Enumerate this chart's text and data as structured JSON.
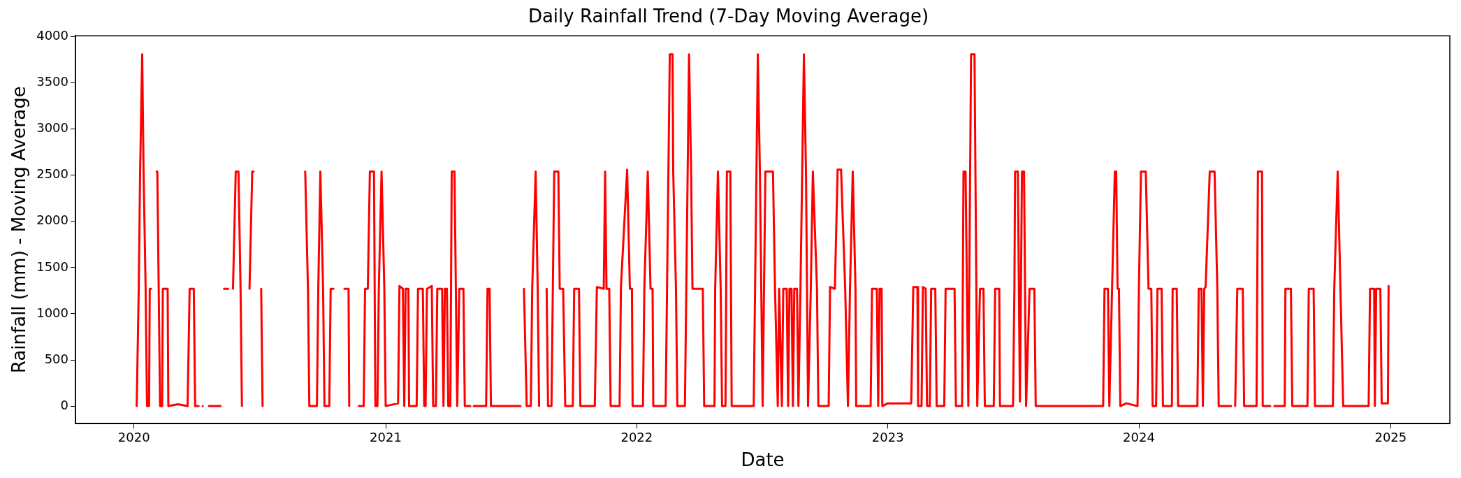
{
  "chart_data": {
    "type": "line",
    "title": "Daily Rainfall Trend (7-Day Moving Average)",
    "xlabel": "Date",
    "ylabel": "Rainfall (mm) - Moving Average",
    "x": [
      "2020-01-05",
      "2020-01-08",
      "2020-01-10",
      "2020-01-13",
      "2020-01-15",
      "2020-01-18",
      "2020-01-20",
      "2020-01-23",
      "2020-01-24",
      "2020-01-26",
      "2020-01-29",
      "2020-02-03",
      "2020-02-04",
      "2020-02-08",
      "2020-02-11",
      "2020-02-12",
      "2020-02-19",
      "2020-02-20",
      "2020-03-05",
      "2020-03-19",
      "2020-03-22",
      "2020-03-28",
      "2020-03-30",
      "2020-04-04",
      "2020-04-07",
      "2020-04-10",
      "2020-04-12",
      "2020-04-19",
      "2020-05-06",
      "2020-05-08",
      "2020-05-11",
      "2020-05-17",
      "2020-05-20",
      "2020-05-24",
      "2020-05-28",
      "2020-06-01",
      "2020-06-04",
      "2020-06-06",
      "2020-06-10",
      "2020-06-17",
      "2020-06-21",
      "2020-06-23",
      "2020-06-27",
      "2020-07-04",
      "2020-07-06",
      "2020-07-20",
      "2020-09-06",
      "2020-09-10",
      "2020-09-12",
      "2020-09-23",
      "2020-09-25",
      "2020-09-28",
      "2020-10-02",
      "2020-10-04",
      "2020-10-11",
      "2020-10-13",
      "2020-10-17",
      "2020-10-22",
      "2020-11-02",
      "2020-11-08",
      "2020-11-09",
      "2020-11-15",
      "2020-11-23",
      "2020-11-30",
      "2020-12-02",
      "2020-12-06",
      "2020-12-09",
      "2020-12-15",
      "2020-12-17",
      "2020-12-20",
      "2020-12-22",
      "2020-12-26",
      "2020-12-30",
      "2021-01-01",
      "2021-01-19",
      "2021-01-21",
      "2021-01-26",
      "2021-01-28",
      "2021-01-30",
      "2021-02-03",
      "2021-02-04",
      "2021-02-15",
      "2021-02-17",
      "2021-02-24",
      "2021-02-26",
      "2021-02-28",
      "2021-03-02",
      "2021-03-09",
      "2021-03-11",
      "2021-03-15",
      "2021-03-17",
      "2021-03-24",
      "2021-03-26",
      "2021-03-28",
      "2021-03-31",
      "2021-04-02",
      "2021-04-05",
      "2021-04-07",
      "2021-04-11",
      "2021-04-13",
      "2021-04-15",
      "2021-04-18",
      "2021-04-24",
      "2021-04-26",
      "2021-05-04",
      "2021-05-06",
      "2021-05-09",
      "2021-05-27",
      "2021-05-29",
      "2021-06-01",
      "2021-06-03",
      "2021-07-16",
      "2021-07-18",
      "2021-07-21",
      "2021-07-25",
      "2021-07-31",
      "2021-08-02",
      "2021-08-07",
      "2021-08-10",
      "2021-08-12",
      "2021-08-16",
      "2021-08-23",
      "2021-08-25",
      "2021-08-30",
      "2021-09-01",
      "2021-09-03",
      "2021-09-09",
      "2021-09-11",
      "2021-09-16",
      "2021-09-19",
      "2021-09-30",
      "2021-10-02",
      "2021-10-09",
      "2021-10-11",
      "2021-11-01",
      "2021-11-04",
      "2021-11-14",
      "2021-11-16",
      "2021-11-18",
      "2021-11-22",
      "2021-11-24",
      "2021-12-07",
      "2021-12-09",
      "2021-12-18",
      "2021-12-22",
      "2021-12-25",
      "2021-12-26",
      "2022-01-10",
      "2022-01-12",
      "2022-01-17",
      "2022-01-21",
      "2022-01-24",
      "2022-01-25",
      "2022-02-12",
      "2022-02-14",
      "2022-02-18",
      "2022-02-22",
      "2022-02-23",
      "2022-02-27",
      "2022-03-01",
      "2022-03-12",
      "2022-03-14",
      "2022-03-18",
      "2022-03-21",
      "2022-03-23",
      "2022-04-07",
      "2022-04-09",
      "2022-04-24",
      "2022-04-25",
      "2022-04-29",
      "2022-05-03",
      "2022-05-05",
      "2022-05-10",
      "2022-05-12",
      "2022-05-17",
      "2022-05-19",
      "2022-06-20",
      "2022-06-22",
      "2022-06-26",
      "2022-06-29",
      "2022-07-03",
      "2022-07-07",
      "2022-07-18",
      "2022-07-21",
      "2022-07-25",
      "2022-07-27",
      "2022-07-31",
      "2022-08-02",
      "2022-08-07",
      "2022-08-09",
      "2022-08-11",
      "2022-08-14",
      "2022-08-16",
      "2022-08-18",
      "2022-08-22",
      "2022-08-24",
      "2022-08-27",
      "2022-09-01",
      "2022-09-04",
      "2022-09-07",
      "2022-09-11",
      "2022-09-14",
      "2022-09-20",
      "2022-09-22",
      "2022-10-07",
      "2022-10-09",
      "2022-10-16",
      "2022-10-20",
      "2022-10-25",
      "2022-10-31",
      "2022-11-04",
      "2022-11-07",
      "2022-11-11",
      "2022-11-15",
      "2022-11-16",
      "2022-12-07",
      "2022-12-09",
      "2022-12-16",
      "2022-12-18",
      "2022-12-20",
      "2022-12-23",
      "2022-12-24",
      "2023-01-01",
      "2023-02-04",
      "2023-02-07",
      "2023-02-13",
      "2023-02-14",
      "2023-02-19",
      "2023-02-21",
      "2023-02-25",
      "2023-02-27",
      "2023-03-03",
      "2023-03-05",
      "2023-03-11",
      "2023-03-13",
      "2023-03-24",
      "2023-03-26",
      "2023-04-08",
      "2023-04-10",
      "2023-04-19",
      "2023-04-21",
      "2023-04-24",
      "2023-04-28",
      "2023-05-02",
      "2023-05-07",
      "2023-05-11",
      "2023-05-15",
      "2023-05-20",
      "2023-05-22",
      "2023-06-04",
      "2023-06-06",
      "2023-06-12",
      "2023-06-13",
      "2023-07-02",
      "2023-07-04",
      "2023-07-05",
      "2023-07-09",
      "2023-07-12",
      "2023-07-15",
      "2023-07-18",
      "2023-07-21",
      "2023-07-26",
      "2023-08-02",
      "2023-08-04",
      "2023-11-10",
      "2023-11-12",
      "2023-11-17",
      "2023-11-19",
      "2023-11-23",
      "2023-11-27",
      "2023-11-29",
      "2023-12-01",
      "2023-12-03",
      "2023-12-05",
      "2023-12-14",
      "2023-12-30",
      "2024-01-01",
      "2024-01-04",
      "2024-01-11",
      "2024-01-15",
      "2024-01-19",
      "2024-01-21",
      "2024-01-26",
      "2024-01-28",
      "2024-02-03",
      "2024-02-05",
      "2024-02-18",
      "2024-02-19",
      "2024-02-25",
      "2024-02-27",
      "2024-03-26",
      "2024-03-28",
      "2024-04-01",
      "2024-04-03",
      "2024-04-05",
      "2024-04-07",
      "2024-04-13",
      "2024-04-20",
      "2024-04-24",
      "2024-04-26",
      "2024-05-14",
      "2024-05-17",
      "2024-05-20",
      "2024-05-23",
      "2024-05-31",
      "2024-06-02",
      "2024-06-20",
      "2024-06-22",
      "2024-06-28",
      "2024-06-29",
      "2024-07-10",
      "2024-07-13",
      "2024-07-16",
      "2024-07-31",
      "2024-08-01",
      "2024-08-09",
      "2024-08-11",
      "2024-09-02",
      "2024-09-04",
      "2024-09-11",
      "2024-09-13",
      "2024-10-09",
      "2024-10-11",
      "2024-10-16",
      "2024-10-20",
      "2024-10-24",
      "2024-11-30",
      "2024-12-02",
      "2024-12-08",
      "2024-12-09",
      "2024-12-11",
      "2024-12-17",
      "2024-12-19",
      "2024-12-28",
      "2024-12-29"
    ],
    "series": [
      {
        "color": "#ff0000",
        "values": [
          0,
          1270,
          2540,
          3810,
          2540,
          1270,
          0,
          0,
          1270,
          1270,
          null,
          2540,
          2540,
          0,
          0,
          1270,
          1270,
          0,
          20,
          0,
          1270,
          1270,
          0,
          0,
          null,
          0,
          null,
          0,
          0,
          null,
          1270,
          1270,
          null,
          1270,
          2540,
          2540,
          1270,
          0,
          null,
          1270,
          2540,
          2540,
          null,
          1270,
          0,
          null,
          2540,
          1270,
          0,
          0,
          1270,
          2540,
          1270,
          0,
          0,
          1270,
          1270,
          null,
          1270,
          1270,
          0,
          null,
          0,
          0,
          1270,
          1270,
          2540,
          2540,
          0,
          0,
          1270,
          2540,
          1270,
          0,
          30,
          1300,
          1270,
          0,
          1270,
          1270,
          0,
          0,
          1270,
          1270,
          0,
          0,
          1270,
          1300,
          0,
          0,
          1270,
          1270,
          0,
          1270,
          1270,
          0,
          0,
          2540,
          2540,
          1270,
          0,
          1270,
          1270,
          0,
          0,
          null,
          0,
          0,
          1270,
          1270,
          0,
          0,
          null,
          1270,
          0,
          0,
          1270,
          2540,
          1270,
          0,
          null,
          1270,
          0,
          0,
          1270,
          2540,
          2540,
          1270,
          1270,
          0,
          0,
          1270,
          1270,
          0,
          0,
          1290,
          1270,
          2540,
          1270,
          1270,
          0,
          0,
          1290,
          2560,
          1270,
          1270,
          0,
          0,
          1270,
          2540,
          1270,
          1270,
          0,
          0,
          1270,
          3810,
          3810,
          2540,
          1270,
          0,
          0,
          1270,
          3810,
          2540,
          1270,
          1270,
          0,
          0,
          1270,
          2540,
          1270,
          0,
          0,
          2540,
          2540,
          0,
          0,
          1270,
          3810,
          2540,
          0,
          2540,
          2540,
          1270,
          0,
          1270,
          0,
          1270,
          1270,
          0,
          1270,
          1270,
          0,
          1270,
          1270,
          0,
          1270,
          3810,
          2540,
          0,
          1270,
          2540,
          1270,
          0,
          0,
          1290,
          1270,
          2560,
          2560,
          1270,
          0,
          1270,
          2540,
          1270,
          0,
          0,
          1270,
          1270,
          0,
          1270,
          1270,
          0,
          30,
          30,
          1290,
          1290,
          0,
          0,
          1290,
          1270,
          0,
          0,
          1270,
          1270,
          0,
          0,
          1270,
          1270,
          0,
          0,
          2540,
          2540,
          0,
          3810,
          3810,
          0,
          1270,
          1270,
          0,
          0,
          1270,
          1270,
          0,
          0,
          1270,
          2540,
          2540,
          50,
          2540,
          2540,
          0,
          1270,
          1270,
          0,
          0,
          1270,
          1270,
          0,
          1270,
          2540,
          2540,
          1270,
          1270,
          0,
          30,
          0,
          1270,
          2540,
          2540,
          1270,
          1270,
          0,
          0,
          1270,
          1270,
          0,
          0,
          1270,
          1270,
          0,
          0,
          1270,
          1270,
          0,
          1270,
          1290,
          2540,
          2540,
          1270,
          0,
          0,
          null,
          0,
          1270,
          1270,
          0,
          0,
          2540,
          2540,
          0,
          0,
          null,
          0,
          0,
          1270,
          1270,
          0,
          0,
          1270,
          1270,
          0,
          0,
          1270,
          2540,
          1270,
          0,
          0,
          1270,
          1270,
          0,
          1270,
          1270,
          30,
          30,
          1300
        ]
      }
    ],
    "xlim": [
      "2019-10-08",
      "2025-03-28"
    ],
    "xticks": [
      "2020",
      "2021",
      "2022",
      "2023",
      "2024",
      "2025"
    ],
    "ylim": [
      -190,
      4010
    ],
    "yticks": [
      0,
      500,
      1000,
      1500,
      2000,
      2500,
      3000,
      3500,
      4000
    ],
    "grid": false
  }
}
